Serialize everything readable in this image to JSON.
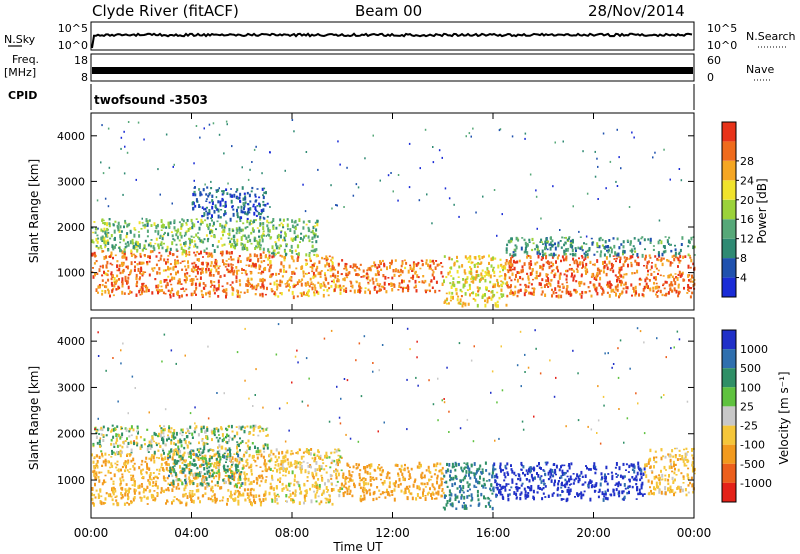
{
  "header": {
    "station": "Clyde River (fitACF)",
    "beam": "Beam 00",
    "date": "28/Nov/2014"
  },
  "strips": {
    "nsky_label": "N.Sky",
    "nsky_ticks": [
      "10^5",
      "10^0"
    ],
    "nsearch_label": "N.Search",
    "nsearch_ticks": [
      "10^5",
      "10^0"
    ],
    "freq_label_1": "Freq.",
    "freq_label_2": "[MHz]",
    "freq_ticks": [
      "18",
      "8"
    ],
    "nave_label": "Nave",
    "nave_ticks": [
      "60",
      "0"
    ],
    "cpid_label": "CPID",
    "cpid_value": "twofsound -3503"
  },
  "colors": {
    "power": [
      "#1a2cd6",
      "#1f51ae",
      "#2f8a73",
      "#56a878",
      "#9bd23a",
      "#f0e22c",
      "#f5a623",
      "#ef6b1c",
      "#e8331a"
    ],
    "velocity": [
      "#2030c8",
      "#2f6fae",
      "#2f8f66",
      "#5fc23f",
      "#c8c8c8",
      "#f5c63a",
      "#f29a1e",
      "#ec5f1c",
      "#e42219"
    ]
  },
  "chart_data": [
    {
      "type": "heatmap",
      "panel": "power",
      "ylabel": "Slant Range [km]",
      "xlabel": "Time UT",
      "xlim": [
        0,
        24
      ],
      "ylim": [
        180,
        4500
      ],
      "x_ticks": [
        "00:00",
        "04:00",
        "08:00",
        "12:00",
        "16:00",
        "20:00",
        "00:00"
      ],
      "y_ticks": [
        1000,
        2000,
        3000,
        4000
      ],
      "colorbar_label": "Power [dB]",
      "colorbar_ticks": [
        4,
        8,
        12,
        16,
        20,
        24,
        28
      ],
      "scatter_bands": [
        {
          "t_start": 0.0,
          "t_end": 7.0,
          "range_low": 500,
          "range_high": 1500,
          "value": 26
        },
        {
          "t_start": 0.0,
          "t_end": 7.0,
          "range_low": 1500,
          "range_high": 2200,
          "value": 14
        },
        {
          "t_start": 4.0,
          "t_end": 7.0,
          "range_low": 2200,
          "range_high": 2900,
          "value": 6
        },
        {
          "t_start": 7.0,
          "t_end": 10.0,
          "range_low": 500,
          "range_high": 1400,
          "value": 24
        },
        {
          "t_start": 7.0,
          "t_end": 9.0,
          "range_low": 1400,
          "range_high": 2200,
          "value": 14
        },
        {
          "t_start": 10.0,
          "t_end": 14.0,
          "range_low": 600,
          "range_high": 1300,
          "value": 26
        },
        {
          "t_start": 14.0,
          "t_end": 16.5,
          "range_low": 300,
          "range_high": 1400,
          "value": 20
        },
        {
          "t_start": 16.5,
          "t_end": 24.0,
          "range_low": 500,
          "range_high": 1400,
          "value": 27
        },
        {
          "t_start": 16.5,
          "t_end": 24.0,
          "range_low": 1400,
          "range_high": 1800,
          "value": 10
        }
      ]
    },
    {
      "type": "heatmap",
      "panel": "velocity",
      "ylabel": "Slant Range [km]",
      "xlabel": "Time UT",
      "xlim": [
        0,
        24
      ],
      "ylim": [
        180,
        4500
      ],
      "x_ticks": [
        "00:00",
        "04:00",
        "08:00",
        "12:00",
        "16:00",
        "20:00",
        "00:00"
      ],
      "y_ticks": [
        1000,
        2000,
        3000,
        4000
      ],
      "colorbar_label": "Velocity [m s⁻¹]",
      "colorbar_ticks": [
        "1000",
        "500",
        "100",
        "25",
        "-25",
        "-100",
        "-500",
        "-1000"
      ],
      "scatter_bands": [
        {
          "t_start": 0.0,
          "t_end": 7.0,
          "range_low": 500,
          "range_high": 1600,
          "value": -300
        },
        {
          "t_start": 3.0,
          "t_end": 6.0,
          "range_low": 900,
          "range_high": 1700,
          "value": 150
        },
        {
          "t_start": 0.0,
          "t_end": 7.0,
          "range_low": 1600,
          "range_high": 2200,
          "value": 0
        },
        {
          "t_start": 7.0,
          "t_end": 10.0,
          "range_low": 500,
          "range_high": 1700,
          "value": -150
        },
        {
          "t_start": 10.0,
          "t_end": 14.0,
          "range_low": 600,
          "range_high": 1400,
          "value": -400
        },
        {
          "t_start": 14.0,
          "t_end": 16.0,
          "range_low": 400,
          "range_high": 1400,
          "value": 300
        },
        {
          "t_start": 16.0,
          "t_end": 22.0,
          "range_low": 600,
          "range_high": 1400,
          "value": 900
        },
        {
          "t_start": 22.0,
          "t_end": 24.0,
          "range_low": 700,
          "range_high": 1700,
          "value": -200
        }
      ]
    }
  ]
}
